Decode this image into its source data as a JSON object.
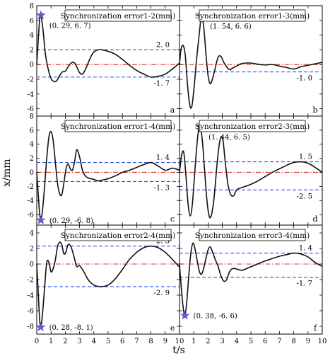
{
  "figure": {
    "ylabel": "x/mm",
    "xlabel": "t/s",
    "x_ticks": [
      0,
      1,
      2,
      3,
      4,
      5,
      6,
      7,
      8,
      9,
      10
    ]
  },
  "chart_data": [
    {
      "type": "line",
      "panel_label": "a",
      "title": "Synchronization error1-2(mm)",
      "xlim": [
        0,
        10
      ],
      "ylim": [
        -7,
        8
      ],
      "yticks": [
        -6,
        -4,
        -2,
        0,
        2,
        4,
        6,
        8
      ],
      "upper_bound": 2.0,
      "upper_label": "2. 0",
      "lower_bound": -1.7,
      "lower_label": "-1. 7",
      "peak": {
        "x": 0.29,
        "y": 6.7,
        "label": "(0. 29, 6. 7)"
      },
      "x": [
        0,
        0.1,
        0.2,
        0.29,
        0.45,
        0.6,
        0.8,
        1.0,
        1.2,
        1.4,
        1.6,
        1.8,
        2.0,
        2.2,
        2.4,
        2.6,
        2.8,
        3.0,
        3.2,
        3.4,
        3.6,
        3.8,
        4.0,
        4.3,
        4.6,
        5.0,
        5.5,
        6.0,
        6.5,
        7.0,
        7.5,
        8.0,
        8.5,
        9.0,
        9.5,
        10.0
      ],
      "y": [
        0,
        3.2,
        6.0,
        6.7,
        4.5,
        1.5,
        -0.6,
        -1.9,
        -2.3,
        -2.2,
        -1.5,
        -1.0,
        -0.9,
        -0.3,
        0.2,
        0.3,
        -0.3,
        -1.1,
        -1.3,
        -0.7,
        0.2,
        1.1,
        1.7,
        2.0,
        2.0,
        1.8,
        1.4,
        0.7,
        -0.1,
        -0.8,
        -1.3,
        -1.7,
        -1.6,
        -1.3,
        -0.6,
        0.2
      ]
    },
    {
      "type": "line",
      "panel_label": "b",
      "title": "Synchronization error1-3(mm)",
      "xlim": [
        0,
        10
      ],
      "ylim": [
        -7,
        8
      ],
      "yticks": [
        -6,
        -4,
        -2,
        0,
        2,
        4,
        6,
        8
      ],
      "upper_bound": null,
      "upper_label": "",
      "lower_bound": -1.0,
      "lower_label": "-1. 0",
      "peak": {
        "x": 1.54,
        "y": 6.6,
        "label": "(1. 54, 6. 6)"
      },
      "x": [
        0,
        0.1,
        0.25,
        0.4,
        0.55,
        0.7,
        0.85,
        1.0,
        1.2,
        1.4,
        1.54,
        1.7,
        1.85,
        2.0,
        2.15,
        2.3,
        2.5,
        2.7,
        2.9,
        3.1,
        3.3,
        3.5,
        3.7,
        3.9,
        4.1,
        4.3,
        4.6,
        5.0,
        5.5,
        6.0,
        6.5,
        7.0,
        7.5,
        8.0,
        8.5,
        9.0,
        9.5,
        10.0
      ],
      "y": [
        0,
        2.0,
        2.6,
        1.3,
        -2.5,
        -5.3,
        -5.8,
        -3.5,
        0.8,
        4.5,
        6.6,
        5.0,
        1.5,
        -1.5,
        -2.6,
        -2.0,
        -0.5,
        1.0,
        1.1,
        0.3,
        -0.3,
        -0.7,
        -0.5,
        -0.3,
        -0.1,
        0.1,
        0.2,
        0.2,
        0.05,
        -0.05,
        0.0,
        -0.2,
        -0.4,
        -0.6,
        -0.3,
        -0.1,
        0.1,
        0.3
      ]
    },
    {
      "type": "line",
      "panel_label": "c",
      "title": "Synchronization error1-4(mm)",
      "xlim": [
        0,
        10
      ],
      "ylim": [
        -7.5,
        8
      ],
      "yticks": [
        -6,
        -4,
        -2,
        0,
        2,
        4,
        6,
        8
      ],
      "upper_bound": 1.4,
      "upper_label": "1. 4",
      "lower_bound": -1.3,
      "lower_label": "-1. 3",
      "peak": {
        "x": 0.29,
        "y": -6.8,
        "label": "(0. 29, -6. 8)"
      },
      "x": [
        0,
        0.1,
        0.2,
        0.29,
        0.4,
        0.55,
        0.7,
        0.85,
        1.0,
        1.15,
        1.3,
        1.45,
        1.6,
        1.75,
        1.9,
        2.05,
        2.2,
        2.35,
        2.5,
        2.65,
        2.8,
        3.0,
        3.2,
        3.4,
        3.6,
        3.8,
        4.0,
        4.3,
        4.6,
        5.0,
        5.5,
        6.0,
        6.5,
        7.0,
        7.5,
        8.0,
        8.5,
        9.0,
        9.5,
        10.0
      ],
      "y": [
        0,
        -3.0,
        -5.8,
        -6.8,
        -5.5,
        -2.0,
        2.0,
        5.0,
        5.8,
        4.5,
        1.5,
        -1.5,
        -3.0,
        -3.2,
        -1.5,
        0.5,
        1.2,
        0.5,
        0.3,
        1.5,
        3.2,
        2.2,
        0.3,
        -0.5,
        -0.8,
        -0.9,
        -1.0,
        -1.2,
        -1.1,
        -0.9,
        -0.5,
        0.0,
        0.3,
        0.7,
        1.1,
        1.4,
        0.9,
        0.3,
        0.6,
        0.3
      ]
    },
    {
      "type": "line",
      "panel_label": "d",
      "title": "Synchronization error2-3(mm)",
      "xlim": [
        0,
        10
      ],
      "ylim": [
        -7.5,
        8
      ],
      "yticks": [
        -6,
        -4,
        -2,
        0,
        2,
        4,
        6,
        8
      ],
      "upper_bound": 1.5,
      "upper_label": "1. 5",
      "lower_bound": -2.5,
      "lower_label": "-2. 5",
      "peak": {
        "x": 1.44,
        "y": 6.5,
        "label": "(1. 44, 6. 5)"
      },
      "x": [
        0,
        0.15,
        0.3,
        0.45,
        0.6,
        0.75,
        0.9,
        1.05,
        1.2,
        1.32,
        1.44,
        1.6,
        1.75,
        1.9,
        2.05,
        2.2,
        2.4,
        2.6,
        2.75,
        2.9,
        3.05,
        3.2,
        3.4,
        3.6,
        3.8,
        4.0,
        4.3,
        4.6,
        5.0,
        5.5,
        6.0,
        6.5,
        7.0,
        7.5,
        8.0,
        8.5,
        9.0,
        9.5,
        10.0
      ],
      "y": [
        0,
        2.5,
        2.8,
        -0.5,
        -4.5,
        -6.2,
        -4.5,
        -0.5,
        3.5,
        5.8,
        6.5,
        4.5,
        0.5,
        -3.5,
        -6.0,
        -6.3,
        -4.0,
        0.5,
        3.5,
        5.0,
        4.5,
        1.5,
        -1.8,
        -3.2,
        -3.3,
        -2.5,
        -2.2,
        -2.0,
        -1.7,
        -1.2,
        -0.6,
        0.0,
        0.5,
        1.0,
        1.4,
        1.5,
        1.3,
        0.7,
        0.0
      ]
    },
    {
      "type": "line",
      "panel_label": "e",
      "title": "Synchronization error2-4(mm)",
      "xlim": [
        0,
        10
      ],
      "ylim": [
        -9,
        5
      ],
      "yticks": [
        -8,
        -6,
        -4,
        -2,
        0,
        2,
        4
      ],
      "upper_bound": 2.3,
      "upper_label": "2. 3",
      "lower_bound": -2.9,
      "lower_label": "-2. 9",
      "peak": {
        "x": 0.28,
        "y": -8.1,
        "label": "(0. 28, -8. 1)"
      },
      "x": [
        0,
        0.1,
        0.2,
        0.28,
        0.4,
        0.55,
        0.7,
        0.85,
        1.0,
        1.15,
        1.3,
        1.45,
        1.6,
        1.75,
        1.9,
        2.05,
        2.2,
        2.4,
        2.6,
        2.8,
        3.0,
        3.3,
        3.6,
        4.0,
        4.5,
        5.0,
        5.5,
        6.0,
        6.5,
        7.0,
        7.5,
        8.0,
        8.5,
        9.0,
        9.5,
        10.0
      ],
      "y": [
        0,
        -3.5,
        -7.0,
        -8.1,
        -6.5,
        -3.0,
        0.2,
        0.2,
        -1.0,
        -0.6,
        0.5,
        2.2,
        2.8,
        2.5,
        1.3,
        1.6,
        2.5,
        2.2,
        1.0,
        -0.3,
        -0.2,
        -1.0,
        -2.0,
        -2.7,
        -2.9,
        -2.7,
        -1.9,
        -0.7,
        0.6,
        1.5,
        2.1,
        2.3,
        2.1,
        1.5,
        0.6,
        -0.4
      ]
    },
    {
      "type": "line",
      "panel_label": "f",
      "title": "Synchronization error3-4(mm)",
      "xlim": [
        0,
        10
      ],
      "ylim": [
        -9,
        5
      ],
      "yticks": [
        -8,
        -6,
        -4,
        -2,
        0,
        2,
        4
      ],
      "upper_bound": 1.4,
      "upper_label": "1. 4",
      "lower_bound": -1.7,
      "lower_label": "-1. 7",
      "peak": {
        "x": 0.38,
        "y": -6.6,
        "label": "(0. 38, -6. 6)"
      },
      "x": [
        0,
        0.1,
        0.25,
        0.38,
        0.5,
        0.65,
        0.8,
        0.95,
        1.1,
        1.25,
        1.4,
        1.55,
        1.7,
        1.85,
        2.0,
        2.15,
        2.3,
        2.5,
        2.7,
        2.9,
        3.1,
        3.3,
        3.5,
        3.7,
        3.9,
        4.1,
        4.4,
        4.8,
        5.2,
        5.6,
        6.0,
        6.5,
        7.0,
        7.5,
        8.0,
        8.5,
        9.0,
        9.5,
        10.0
      ],
      "y": [
        0,
        -2.5,
        -5.5,
        -6.6,
        -5.0,
        -1.5,
        1.5,
        2.7,
        1.8,
        0.3,
        -1.0,
        -1.3,
        -0.5,
        0.7,
        1.8,
        2.2,
        1.6,
        0.6,
        -0.3,
        -1.5,
        -2.2,
        -2.0,
        -1.0,
        -0.6,
        -0.6,
        -0.7,
        -0.8,
        -0.5,
        -0.2,
        0.1,
        0.4,
        0.7,
        1.0,
        1.2,
        1.4,
        1.3,
        0.9,
        0.2,
        -0.3
      ]
    }
  ]
}
